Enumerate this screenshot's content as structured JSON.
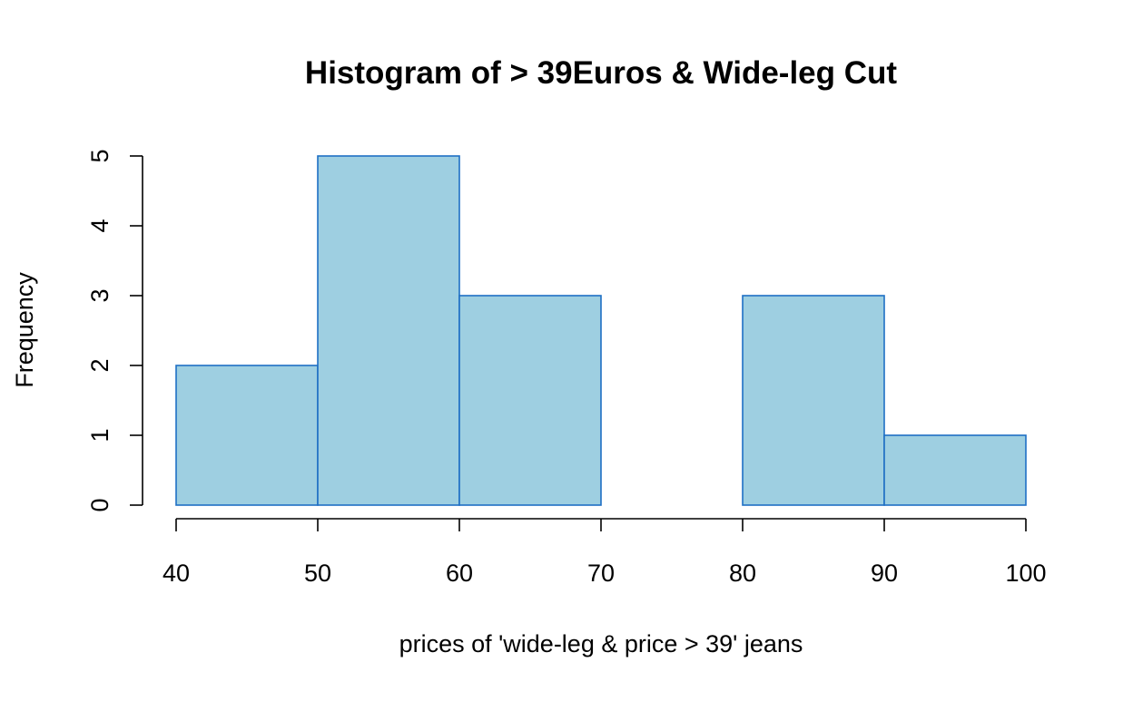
{
  "chart_data": {
    "type": "bar",
    "title": "Histogram of > 39Euros & Wide-leg Cut",
    "xlabel": "prices of 'wide-leg & price > 39' jeans",
    "ylabel": "Frequency",
    "bins": [
      {
        "from": 40,
        "to": 50,
        "count": 2
      },
      {
        "from": 50,
        "to": 60,
        "count": 5
      },
      {
        "from": 60,
        "to": 70,
        "count": 3
      },
      {
        "from": 70,
        "to": 80,
        "count": 0
      },
      {
        "from": 80,
        "to": 90,
        "count": 3
      },
      {
        "from": 90,
        "to": 100,
        "count": 1
      }
    ],
    "xlim": [
      40,
      100
    ],
    "ylim": [
      0,
      5
    ],
    "x_ticks": [
      "40",
      "50",
      "60",
      "70",
      "80",
      "90",
      "100"
    ],
    "y_ticks": [
      "0",
      "1",
      "2",
      "3",
      "4",
      "5"
    ],
    "grid": false,
    "legend": "none",
    "colors": {
      "bar_fill": "#9ecfe1",
      "bar_border": "#1e6fc4",
      "axis": "#000000"
    }
  }
}
